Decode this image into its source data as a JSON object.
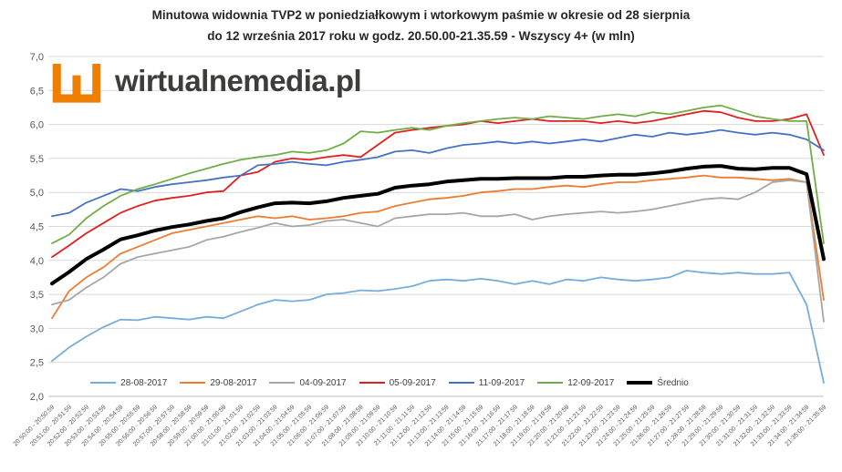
{
  "title": {
    "line1": "Minutowa widownia TVP2 w poniedziałkowym i wtorkowym paśmie w okresie od 28 sierpnia",
    "line2": "do 12 września 2017 roku w godz. 20.50.00-21.35.59 - Wszyscy 4+ (w mln)"
  },
  "logo": {
    "name": "wirtualnemedia",
    "suffix": ".pl",
    "icon_color": "#EE7F01",
    "text_color": "#3D3D3B"
  },
  "chart_data": {
    "type": "line",
    "title": "Minutowa widownia TVP2 w poniedziałkowym i wtorkowym paśmie w okresie od 28 sierpnia do 12 września 2017 roku w godz. 20.50.00-21.35.59 - Wszyscy 4+ (w mln)",
    "xlabel": "",
    "ylabel": "",
    "ylim": [
      2.0,
      7.0
    ],
    "ytick_step": 0.5,
    "ytick_labels": [
      "7,0",
      "6,5",
      "6,0",
      "5,5",
      "5,0",
      "4,5",
      "4,0",
      "3,5",
      "3,0",
      "2,5",
      "2,0"
    ],
    "grid": true,
    "grid_color": "#D9D9D9",
    "axis_label_color": "#595959",
    "legend_position": "bottom",
    "categories": [
      "20:50:00 - 20:50:59",
      "20:51:00 - 20:51:59",
      "20:52:00 - 20:52:59",
      "20:53:00 - 20:53:59",
      "20:54:00 - 20:54:59",
      "20:55:00 - 20:55:59",
      "20:56:00 - 20:56:59",
      "20:57:00 - 20:57:59",
      "20:58:00 - 20:58:59",
      "20:59:00 - 20:59:59",
      "21:00:00 - 21:00:59",
      "21:01:00 - 21:01:59",
      "21:02:00 - 21:02:59",
      "21:03:00 - 21:03:59",
      "21:04:00 - 21:04:59",
      "21:05:00 - 21:05:59",
      "21:06:00 - 21:06:59",
      "21:07:00 - 21:07:59",
      "21:08:00 - 21:08:59",
      "21:09:00 - 21:09:59",
      "21:10:00 - 21:10:59",
      "21:11:00 - 21:11:59",
      "21:12:00 - 21:12:59",
      "21:13:00 - 21:13:59",
      "21:14:00 - 21:14:59",
      "21:15:00 - 21:15:59",
      "21:16:00 - 21:16:59",
      "21:17:00 - 21:17:59",
      "21:18:00 - 21:18:59",
      "21:19:00 - 21:19:59",
      "21:20:00 - 21:20:59",
      "21:21:00 - 21:21:59",
      "21:22:00 - 21:22:59",
      "21:23:00 - 21:23:59",
      "21:24:00 - 21:24:59",
      "21:25:00 - 21:25:59",
      "21:26:00 - 21:26:59",
      "21:27:00 - 21:27:59",
      "21:28:00 - 21:28:59",
      "21:29:00 - 21:29:59",
      "21:30:00 - 21:30:59",
      "21:31:00 - 21:31:59",
      "21:32:00 - 21:32:59",
      "21:33:00 - 21:33:59",
      "21:34:00 - 21:34:59",
      "21:35:00 - 21:35:59"
    ],
    "series": [
      {
        "name": "28-08-2017",
        "color": "#76ADDB",
        "line_width": 1.8,
        "values": [
          2.52,
          2.72,
          2.88,
          3.02,
          3.13,
          3.12,
          3.17,
          3.15,
          3.13,
          3.17,
          3.15,
          3.25,
          3.35,
          3.42,
          3.4,
          3.42,
          3.5,
          3.52,
          3.56,
          3.55,
          3.58,
          3.62,
          3.7,
          3.72,
          3.7,
          3.73,
          3.7,
          3.65,
          3.7,
          3.65,
          3.72,
          3.7,
          3.75,
          3.72,
          3.7,
          3.72,
          3.75,
          3.85,
          3.82,
          3.8,
          3.82,
          3.8,
          3.8,
          3.82,
          3.35,
          2.2
        ]
      },
      {
        "name": "29-08-2017",
        "color": "#ED7D31",
        "line_width": 1.8,
        "values": [
          3.15,
          3.55,
          3.75,
          3.9,
          4.1,
          4.2,
          4.3,
          4.4,
          4.45,
          4.5,
          4.55,
          4.6,
          4.65,
          4.62,
          4.65,
          4.6,
          4.62,
          4.65,
          4.7,
          4.72,
          4.8,
          4.85,
          4.9,
          4.92,
          4.95,
          5.0,
          5.02,
          5.05,
          5.05,
          5.08,
          5.1,
          5.08,
          5.12,
          5.15,
          5.15,
          5.18,
          5.2,
          5.22,
          5.25,
          5.22,
          5.22,
          5.2,
          5.18,
          5.2,
          5.15,
          3.42
        ]
      },
      {
        "name": "04-09-2017",
        "color": "#A6A6A6",
        "line_width": 1.8,
        "values": [
          3.35,
          3.42,
          3.6,
          3.75,
          3.95,
          4.05,
          4.1,
          4.15,
          4.2,
          4.3,
          4.35,
          4.42,
          4.48,
          4.55,
          4.5,
          4.52,
          4.58,
          4.6,
          4.55,
          4.5,
          4.62,
          4.65,
          4.68,
          4.68,
          4.7,
          4.65,
          4.65,
          4.68,
          4.6,
          4.65,
          4.68,
          4.7,
          4.72,
          4.7,
          4.72,
          4.75,
          4.8,
          4.85,
          4.9,
          4.92,
          4.9,
          5.0,
          5.15,
          5.18,
          5.15,
          3.1
        ]
      },
      {
        "name": "05-09-2017",
        "color": "#E02020",
        "line_width": 1.8,
        "values": [
          4.05,
          4.22,
          4.4,
          4.55,
          4.7,
          4.8,
          4.88,
          4.92,
          4.95,
          5.0,
          5.02,
          5.25,
          5.3,
          5.45,
          5.5,
          5.48,
          5.52,
          5.55,
          5.52,
          5.7,
          5.88,
          5.92,
          5.95,
          5.98,
          6.0,
          6.05,
          6.02,
          6.05,
          6.08,
          6.05,
          6.05,
          6.05,
          6.02,
          6.05,
          6.02,
          6.05,
          6.1,
          6.15,
          6.2,
          6.18,
          6.1,
          6.05,
          6.05,
          6.08,
          6.15,
          5.55
        ]
      },
      {
        "name": "11-09-2017",
        "color": "#4472C4",
        "line_width": 1.8,
        "values": [
          4.65,
          4.7,
          4.85,
          4.95,
          5.05,
          5.02,
          5.08,
          5.12,
          5.15,
          5.18,
          5.22,
          5.25,
          5.4,
          5.42,
          5.45,
          5.42,
          5.4,
          5.45,
          5.48,
          5.52,
          5.6,
          5.62,
          5.58,
          5.65,
          5.7,
          5.72,
          5.75,
          5.72,
          5.75,
          5.72,
          5.75,
          5.78,
          5.75,
          5.8,
          5.85,
          5.82,
          5.88,
          5.85,
          5.88,
          5.92,
          5.88,
          5.85,
          5.88,
          5.85,
          5.78,
          5.62
        ]
      },
      {
        "name": "12-09-2017",
        "color": "#70AD47",
        "line_width": 1.8,
        "values": [
          4.25,
          4.38,
          4.62,
          4.8,
          4.95,
          5.05,
          5.12,
          5.2,
          5.28,
          5.35,
          5.42,
          5.48,
          5.52,
          5.55,
          5.6,
          5.58,
          5.62,
          5.72,
          5.9,
          5.88,
          5.92,
          5.95,
          5.92,
          5.98,
          6.02,
          6.05,
          6.08,
          6.1,
          6.08,
          6.12,
          6.1,
          6.08,
          6.12,
          6.15,
          6.12,
          6.18,
          6.15,
          6.2,
          6.25,
          6.28,
          6.2,
          6.12,
          6.08,
          6.05,
          6.05,
          4.25
        ]
      },
      {
        "name": "Średnio",
        "color": "#000000",
        "line_width": 4,
        "values": [
          3.66,
          3.83,
          4.02,
          4.16,
          4.31,
          4.37,
          4.44,
          4.49,
          4.53,
          4.58,
          4.62,
          4.71,
          4.78,
          4.84,
          4.85,
          4.84,
          4.87,
          4.92,
          4.95,
          4.98,
          5.07,
          5.1,
          5.12,
          5.16,
          5.18,
          5.2,
          5.2,
          5.21,
          5.21,
          5.21,
          5.23,
          5.23,
          5.25,
          5.26,
          5.26,
          5.28,
          5.31,
          5.35,
          5.38,
          5.39,
          5.35,
          5.34,
          5.36,
          5.36,
          5.27,
          4.02
        ]
      }
    ]
  }
}
